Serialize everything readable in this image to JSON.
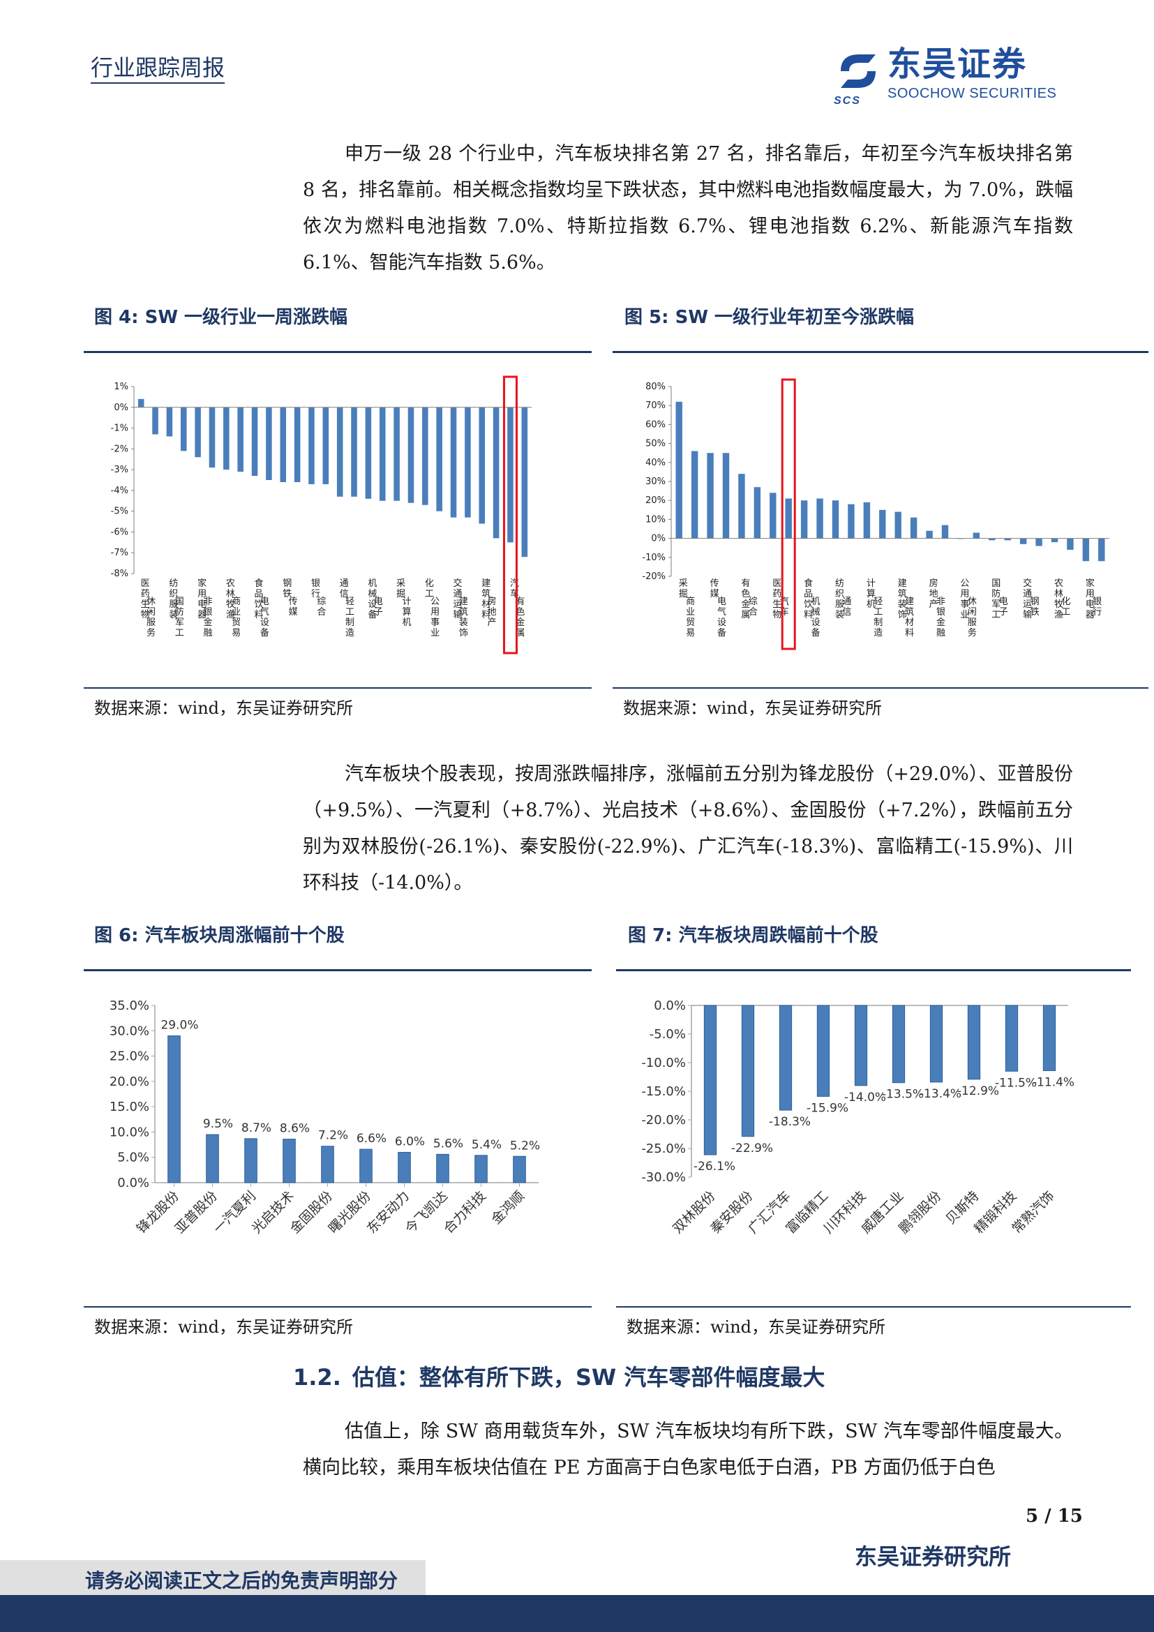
{
  "header": {
    "report_type": "行业跟踪周报",
    "logo_cn": "东吴证券",
    "logo_en": "SOOCHOW SECURITIES",
    "logo_mark": "SCS"
  },
  "paragraphs": {
    "p1": "申万一级 28 个行业中，汽车板块排名第 27 名，排名靠后，年初至今汽车板块排名第 8 名，排名靠前。相关概念指数均呈下跌状态，其中燃料电池指数幅度最大，为 7.0%，跌幅依次为燃料电池指数 7.0%、特斯拉指数 6.7%、锂电池指数 6.2%、新能源汽车指数 6.1%、智能汽车指数 5.6%。",
    "p2": "汽车板块个股表现，按周涨跌幅排序，涨幅前五分别为锋龙股份（+29.0%）、亚普股份（+9.5%）、一汽夏利（+8.7%）、光启技术（+8.6%）、金固股份（+7.2%），跌幅前五分别为双林股份(-26.1%)、秦安股份(-22.9%)、广汇汽车(-18.3%)、富临精工(-15.9%)、川环科技（-14.0%）。",
    "p3": "估值上，除 SW 商用载货车外，SW 汽车板块均有所下跌，SW 汽车零部件幅度最大。横向比较，乘用车板块估值在 PE 方面高于白色家电低于白酒，PB 方面仍低于白色"
  },
  "figures": {
    "fig4": {
      "caption": "图 4:  SW 一级行业一周涨跌幅",
      "source": "数据来源：wind，东吴证券研究所"
    },
    "fig5": {
      "caption": "图 5:  SW 一级行业年初至今涨跌幅",
      "source": "数据来源：wind，东吴证券研究所"
    },
    "fig6": {
      "caption": "图 6:  汽车板块周涨幅前十个股",
      "source": "数据来源：wind，东吴证券研究所"
    },
    "fig7": {
      "caption": "图 7:  汽车板块周跌幅前十个股",
      "source": "数据来源：wind，东吴证券研究所"
    }
  },
  "section": {
    "number": "1.2.",
    "title": "估值：整体有所下跌，SW 汽车零部件幅度最大"
  },
  "footer": {
    "page": "5 / 15",
    "institute": "东吴证券研究所",
    "disclaimer": "请务必阅读正文之后的免责声明部分"
  },
  "colors": {
    "bar": "#4a7ebb",
    "brand": "#1f3864",
    "highlight": "#e8141b"
  },
  "chart_data": [
    {
      "id": "fig4",
      "type": "bar",
      "categories": [
        "医药生物",
        "休闲服务",
        "纺织服装",
        "国防军工",
        "家用电器",
        "非银金融",
        "农林牧渔",
        "商业贸易",
        "食品饮料",
        "电气设备",
        "钢铁",
        "传媒",
        "银行",
        "综合",
        "通信",
        "轻工制造",
        "机械设备",
        "电子",
        "采掘",
        "计算机",
        "化工",
        "公用事业",
        "交通运输",
        "建筑装饰",
        "建筑材料",
        "房地产",
        "汽车",
        "有色金属"
      ],
      "values": [
        0.4,
        -1.3,
        -1.4,
        -2.1,
        -2.4,
        -2.9,
        -3.0,
        -3.1,
        -3.3,
        -3.5,
        -3.6,
        -3.6,
        -3.7,
        -3.7,
        -4.3,
        -4.3,
        -4.4,
        -4.5,
        -4.5,
        -4.6,
        -4.7,
        -5.0,
        -5.3,
        -5.3,
        -5.6,
        -6.3,
        -6.5,
        -7.2
      ],
      "yticks": [
        "1%",
        "0%",
        "-1%",
        "-2%",
        "-3%",
        "-4%",
        "-5%",
        "-6%",
        "-7%",
        "-8%"
      ],
      "ylim": [
        -8,
        1
      ],
      "highlight": "汽车"
    },
    {
      "id": "fig5",
      "type": "bar",
      "categories": [
        "采掘",
        "商业贸易",
        "传媒",
        "电气设备",
        "有色金属",
        "综合",
        "医药生物",
        "汽车",
        "食品饮料",
        "机械设备",
        "纺织服装",
        "通信",
        "计算机",
        "轻工制造",
        "建筑装饰",
        "建筑材料",
        "房地产",
        "非银金融",
        "公用事业",
        "休闲服务",
        "国防军工",
        "电子",
        "交通运输",
        "钢铁",
        "农林牧渔",
        "化工",
        "家用电器",
        "银行"
      ],
      "values": [
        72,
        46,
        45,
        45,
        34,
        27,
        24,
        21,
        20,
        21,
        20,
        18,
        19,
        15,
        14,
        11,
        4,
        7,
        0,
        3,
        -1,
        -1,
        -3,
        -4,
        -2,
        -6,
        -12,
        -12
      ],
      "yticks": [
        "80%",
        "70%",
        "60%",
        "50%",
        "40%",
        "30%",
        "20%",
        "10%",
        "0%",
        "-10%",
        "-20%"
      ],
      "ylim": [
        -20,
        80
      ],
      "highlight": "汽车"
    },
    {
      "id": "fig6",
      "type": "bar",
      "categories": [
        "锋龙股份",
        "亚普股份",
        "一汽夏利",
        "光启技术",
        "金固股份",
        "曙光股份",
        "东安动力",
        "今飞凯达",
        "合力科技",
        "金鸿顺"
      ],
      "values": [
        29.0,
        9.5,
        8.7,
        8.6,
        7.2,
        6.6,
        6.0,
        5.6,
        5.4,
        5.2
      ],
      "labels": [
        "29.0%",
        "9.5%",
        "8.7%",
        "8.6%",
        "7.2%",
        "6.6%",
        "6.0%",
        "5.6%",
        "5.4%",
        "5.2%"
      ],
      "yticks": [
        "35.0%",
        "30.0%",
        "25.0%",
        "20.0%",
        "15.0%",
        "10.0%",
        "5.0%",
        "0.0%"
      ],
      "ylim": [
        0,
        35
      ]
    },
    {
      "id": "fig7",
      "type": "bar",
      "categories": [
        "双林股份",
        "秦安股份",
        "广汇汽车",
        "富临精工",
        "川环科技",
        "威唐工业",
        "鹏翎股份",
        "贝斯特",
        "精锻科技",
        "常熟汽饰"
      ],
      "values": [
        -26.1,
        -22.9,
        -18.3,
        -15.9,
        -14.0,
        -13.5,
        -13.4,
        -12.9,
        -11.5,
        -11.4
      ],
      "labels": [
        "-26.1%",
        "-22.9%",
        "-18.3%",
        "-15.9%",
        "-14.0%",
        "-13.5%",
        "-13.4%",
        "-12.9%",
        "-11.5%",
        "-11.4%"
      ],
      "yticks": [
        "0.0%",
        "-5.0%",
        "-10.0%",
        "-15.0%",
        "-20.0%",
        "-25.0%",
        "-30.0%"
      ],
      "ylim": [
        -30,
        0
      ]
    }
  ]
}
